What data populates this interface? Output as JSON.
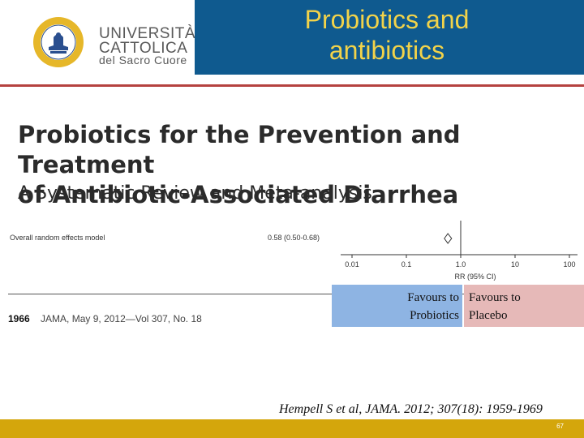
{
  "header": {
    "logo": {
      "line1": "UNIVERSITÀ",
      "line2": "CATTOLICA",
      "line3": "del Sacro Cuore",
      "seal_text": "UNIVERSITÀ CATTOLICA DEL SACRO CUORE · MEDIOLANI",
      "colors": {
        "seal_blue": "#2a4f8f",
        "seal_gold": "#e6b729",
        "text_gray": "#5a5a5a"
      }
    },
    "title_line1": "Probiotics and",
    "title_line2": "antibiotics",
    "colors": {
      "band": "#0f5a8f",
      "title_text": "#f2d34a",
      "rule": "#b5423f"
    }
  },
  "paper": {
    "title_line1": "Probiotics for the Prevention and Treatment",
    "title_line2": "of Antibiotic-Associated Diarrhea",
    "subtitle": "A Systematic Review and Meta-analysis"
  },
  "forest_plot": {
    "row_label": "Overall random effects model",
    "estimate": "0.58 (0.50-0.68)",
    "rr": 0.58,
    "ci": [
      0.5,
      0.68
    ],
    "axis_ticks": [
      "0.01",
      "0.1",
      "1.0",
      "10",
      "100"
    ],
    "axis_label": "RR (95% CI)",
    "scale": "log"
  },
  "journal": {
    "page": "1966",
    "ref": "JAMA, May 9, 2012—Vol 307, No. 18"
  },
  "favours": {
    "left_line1": "Favours to",
    "left_line2": "Probiotics",
    "right_line1": "Favours to",
    "right_line2": "Placebo",
    "colors": {
      "left": "#8eb4e3",
      "right": "#e6b9b8"
    }
  },
  "citation": "Hempell S et al, JAMA. 2012; 307(18): 1959-1969",
  "footer": {
    "page_number": "67",
    "color": "#d4a60c"
  }
}
